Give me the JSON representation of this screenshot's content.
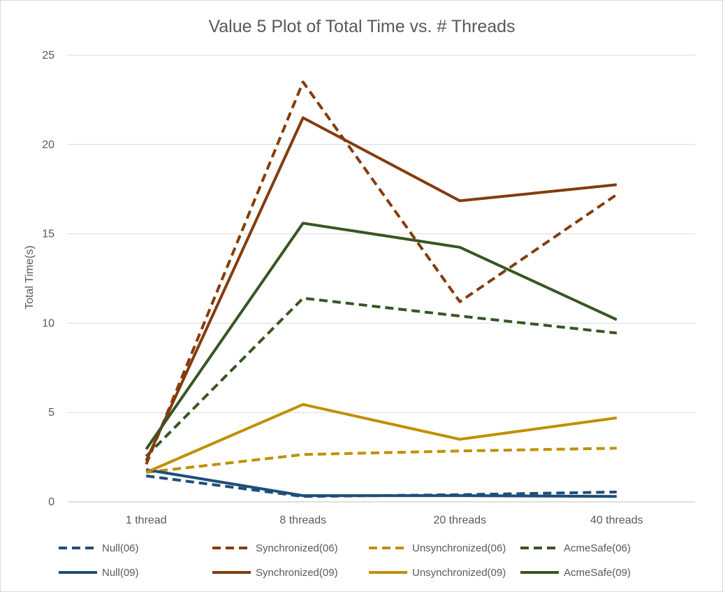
{
  "chart_data": {
    "type": "line",
    "title": "Value 5 Plot of Total Time vs. # Threads",
    "xlabel": "",
    "ylabel": "Total Time(s)",
    "ylim": [
      0,
      25
    ],
    "yticks": [
      0,
      5,
      10,
      15,
      20,
      25
    ],
    "grid": true,
    "legend_position": "bottom",
    "categories": [
      "1 thread",
      "8 threads",
      "20 threads",
      "40 threads"
    ],
    "series": [
      {
        "name": "Null(06)",
        "values": [
          1.45,
          0.3,
          0.4,
          0.55
        ],
        "color": "#1f4e79",
        "dash": true
      },
      {
        "name": "Synchronized(06)",
        "values": [
          2.1,
          23.5,
          11.2,
          17.2
        ],
        "color": "#843c0c",
        "dash": true
      },
      {
        "name": "Unsynchronized(06)",
        "values": [
          1.65,
          2.65,
          2.85,
          3.0
        ],
        "color": "#bf9000",
        "dash": true
      },
      {
        "name": "AcmeSafe(06)",
        "values": [
          2.55,
          11.4,
          10.4,
          9.45
        ],
        "color": "#375623",
        "dash": true
      },
      {
        "name": "Null(09)",
        "values": [
          1.8,
          0.35,
          0.35,
          0.3
        ],
        "color": "#1f4e79",
        "dash": false
      },
      {
        "name": "Synchronized(09)",
        "values": [
          2.3,
          21.5,
          16.85,
          17.75
        ],
        "color": "#843c0c",
        "dash": false
      },
      {
        "name": "Unsynchronized(09)",
        "values": [
          1.65,
          5.45,
          3.5,
          4.7
        ],
        "color": "#bf9000",
        "dash": false
      },
      {
        "name": "AcmeSafe(09)",
        "values": [
          2.95,
          15.6,
          14.25,
          10.2
        ],
        "color": "#375623",
        "dash": false
      }
    ]
  }
}
